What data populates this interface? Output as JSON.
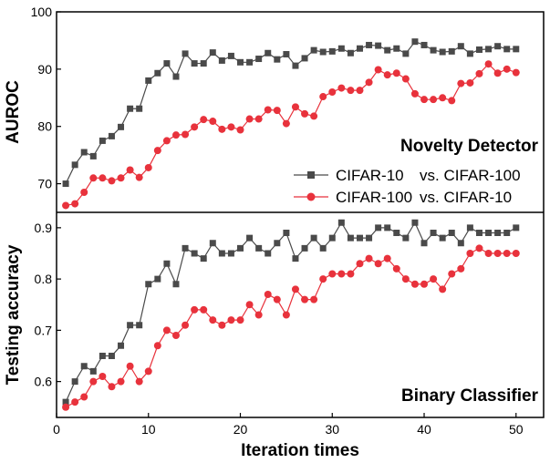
{
  "chart_data": {
    "type": "line",
    "xlabel": "Iteration times",
    "xlim": [
      0,
      53
    ],
    "x_ticks": [
      0,
      10,
      20,
      30,
      40,
      50
    ],
    "x": [
      1,
      2,
      3,
      4,
      5,
      6,
      7,
      8,
      9,
      10,
      11,
      12,
      13,
      14,
      15,
      16,
      17,
      18,
      19,
      20,
      21,
      22,
      23,
      24,
      25,
      26,
      27,
      28,
      29,
      30,
      31,
      32,
      33,
      34,
      35,
      36,
      37,
      38,
      39,
      40,
      41,
      42,
      43,
      44,
      45,
      46,
      47,
      48,
      49,
      50
    ],
    "colors": {
      "series_1": "#4a4a4a",
      "series_2": "#e8323c"
    },
    "legend": {
      "placement": "right, inside top panel",
      "entries": [
        {
          "series": "CIFAR-10 vs. CIFAR-100",
          "left": "CIFAR-10",
          "right": "vs. CIFAR-100",
          "marker": "square"
        },
        {
          "series": "CIFAR-100 vs. CIFAR-10",
          "left": "CIFAR-100",
          "right": "vs. CIFAR-10",
          "marker": "circle"
        }
      ]
    },
    "panels": [
      {
        "title": "Novelty Detector",
        "ylabel": "AUROC",
        "ylim": [
          65,
          100
        ],
        "y_ticks": [
          70,
          80,
          90,
          100
        ],
        "series": [
          {
            "name": "CIFAR-10 vs. CIFAR-100",
            "marker": "square",
            "values": [
              70,
              73.3,
              75.5,
              74.8,
              77.5,
              78.3,
              79.9,
              83.1,
              83.1,
              88,
              89.3,
              91,
              88.7,
              92.7,
              91,
              91,
              92.9,
              91.5,
              92.3,
              91.2,
              91.2,
              91.8,
              92.8,
              91.7,
              92.6,
              90.6,
              91.9,
              93.3,
              93,
              93.1,
              93.6,
              92.8,
              93.6,
              94.2,
              94.1,
              93.3,
              93.6,
              92.7,
              94.8,
              94.2,
              93.3,
              93,
              93.1,
              94,
              92.7,
              93.4,
              93.5,
              94,
              93.5,
              93.5
            ]
          },
          {
            "name": "CIFAR-100 vs. CIFAR-10",
            "marker": "circle",
            "values": [
              66.2,
              66.5,
              68.5,
              71,
              71,
              70.5,
              71,
              72.4,
              71.1,
              72.8,
              75.8,
              77.5,
              78.5,
              78.6,
              79.9,
              81.2,
              80.9,
              79.5,
              79.9,
              79.4,
              81.3,
              81.3,
              82.9,
              82.8,
              80.5,
              83.4,
              82.2,
              81.8,
              85.2,
              86,
              86.7,
              86.3,
              86.3,
              87.7,
              89.9,
              89,
              89.3,
              88.3,
              85.7,
              84.7,
              84.7,
              85,
              84.5,
              87.5,
              87.6,
              89.2,
              90.9,
              89.3,
              90,
              89.4
            ]
          }
        ]
      },
      {
        "title": "Binary Classifier",
        "ylabel": "Testing accuracy",
        "ylim": [
          0.53,
          0.93
        ],
        "y_ticks": [
          0.6,
          0.7,
          0.8,
          0.9
        ],
        "y_tick_labels": [
          "0.6",
          "0.7",
          "0.8",
          "0.9"
        ],
        "series": [
          {
            "name": "CIFAR-10 vs. CIFAR-100",
            "marker": "square",
            "values": [
              0.56,
              0.6,
              0.63,
              0.62,
              0.65,
              0.65,
              0.67,
              0.71,
              0.71,
              0.79,
              0.8,
              0.83,
              0.79,
              0.86,
              0.85,
              0.84,
              0.87,
              0.85,
              0.85,
              0.86,
              0.88,
              0.86,
              0.85,
              0.87,
              0.89,
              0.84,
              0.86,
              0.88,
              0.86,
              0.88,
              0.91,
              0.88,
              0.88,
              0.88,
              0.9,
              0.9,
              0.89,
              0.88,
              0.91,
              0.87,
              0.89,
              0.88,
              0.89,
              0.87,
              0.9,
              0.89,
              0.89,
              0.89,
              0.89,
              0.9
            ]
          },
          {
            "name": "CIFAR-100 vs. CIFAR-10",
            "marker": "circle",
            "values": [
              0.55,
              0.56,
              0.57,
              0.6,
              0.61,
              0.59,
              0.6,
              0.63,
              0.6,
              0.62,
              0.67,
              0.7,
              0.69,
              0.71,
              0.74,
              0.74,
              0.72,
              0.71,
              0.72,
              0.72,
              0.75,
              0.73,
              0.77,
              0.76,
              0.73,
              0.78,
              0.76,
              0.76,
              0.8,
              0.81,
              0.81,
              0.81,
              0.83,
              0.84,
              0.83,
              0.84,
              0.82,
              0.8,
              0.79,
              0.79,
              0.8,
              0.78,
              0.81,
              0.82,
              0.85,
              0.86,
              0.85,
              0.85,
              0.85,
              0.85
            ]
          }
        ]
      }
    ]
  }
}
